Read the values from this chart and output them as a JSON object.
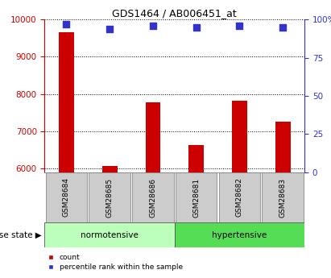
{
  "title": "GDS1464 / AB006451_at",
  "samples": [
    "GSM28684",
    "GSM28685",
    "GSM28686",
    "GSM28681",
    "GSM28682",
    "GSM28683"
  ],
  "counts": [
    9650,
    6060,
    7770,
    6630,
    7820,
    7250
  ],
  "percentile_ranks": [
    97,
    94,
    96,
    95,
    96,
    95
  ],
  "ylim_left": [
    5900,
    10000
  ],
  "ylim_right": [
    0,
    100
  ],
  "yticks_left": [
    6000,
    7000,
    8000,
    9000,
    10000
  ],
  "yticks_right": [
    0,
    25,
    50,
    75,
    100
  ],
  "ytick_labels_left": [
    "6000",
    "7000",
    "8000",
    "9000",
    "10000"
  ],
  "ytick_labels_right": [
    "0",
    "25",
    "50",
    "75",
    "100%"
  ],
  "bar_color": "#cc0000",
  "dot_color": "#3333cc",
  "normotensive_color": "#bbffbb",
  "hypertensive_color": "#55dd55",
  "normotensive_label": "normotensive",
  "hypertensive_label": "hypertensive",
  "disease_state_label": "disease state",
  "legend_count": "count",
  "legend_percentile": "percentile rank within the sample",
  "axis_color_left": "#cc0000",
  "axis_color_right": "#3333cc",
  "bg_xtick": "#cccccc",
  "bar_width": 0.35,
  "dot_size": 28
}
